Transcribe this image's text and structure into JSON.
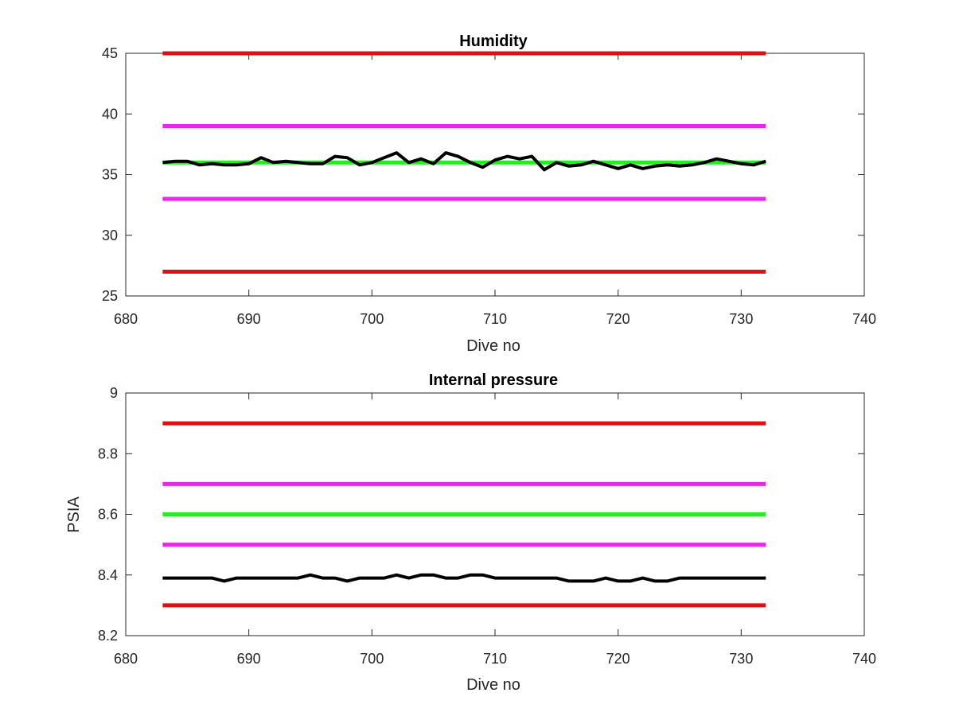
{
  "chart_data": [
    {
      "type": "line",
      "title": "Humidity",
      "xlabel": "Dive no",
      "ylabel": "",
      "xlim": [
        680,
        740
      ],
      "ylim": [
        25,
        45
      ],
      "xticks": [
        "680",
        "690",
        "700",
        "710",
        "720",
        "730",
        "740"
      ],
      "yticks": [
        "25",
        "30",
        "35",
        "40",
        "45"
      ],
      "grid": false,
      "legend": false,
      "thresholds": [
        {
          "y": 45,
          "x": [
            683,
            732
          ],
          "color": "#e01010"
        },
        {
          "y": 39,
          "x": [
            683,
            732
          ],
          "color": "#ee22ee"
        },
        {
          "y": 36,
          "x": [
            683,
            732
          ],
          "color": "#22ee22"
        },
        {
          "y": 33,
          "x": [
            683,
            732
          ],
          "color": "#ee22ee"
        },
        {
          "y": 27,
          "x": [
            683,
            732
          ],
          "color": "#e01010"
        }
      ],
      "series": [
        {
          "color": "#000000",
          "x": [
            683,
            684,
            685,
            686,
            687,
            688,
            689,
            690,
            691,
            692,
            693,
            694,
            695,
            696,
            697,
            698,
            699,
            700,
            701,
            702,
            703,
            704,
            705,
            706,
            707,
            708,
            709,
            710,
            711,
            712,
            713,
            714,
            715,
            716,
            717,
            718,
            719,
            720,
            721,
            722,
            723,
            724,
            725,
            726,
            727,
            728,
            729,
            730,
            731,
            732
          ],
          "values": [
            36.0,
            36.1,
            36.1,
            35.8,
            35.9,
            35.8,
            35.8,
            35.9,
            36.4,
            36.0,
            36.1,
            36.0,
            35.9,
            35.9,
            36.5,
            36.4,
            35.8,
            36.0,
            36.4,
            36.8,
            36.0,
            36.3,
            35.9,
            36.8,
            36.5,
            36.0,
            35.6,
            36.2,
            36.5,
            36.3,
            36.5,
            35.4,
            36.0,
            35.7,
            35.8,
            36.1,
            35.8,
            35.5,
            35.8,
            35.5,
            35.7,
            35.8,
            35.7,
            35.8,
            36.0,
            36.3,
            36.1,
            35.9,
            35.8,
            36.1
          ]
        }
      ]
    },
    {
      "type": "line",
      "title": "Internal pressure",
      "xlabel": "Dive no",
      "ylabel": "PSIA",
      "xlim": [
        680,
        740
      ],
      "ylim": [
        8.2,
        9.0
      ],
      "xticks": [
        "680",
        "690",
        "700",
        "710",
        "720",
        "730",
        "740"
      ],
      "yticks": [
        "8.2",
        "8.4",
        "8.6",
        "8.8",
        "9"
      ],
      "grid": false,
      "legend": false,
      "thresholds": [
        {
          "y": 8.9,
          "x": [
            683,
            732
          ],
          "color": "#e01010"
        },
        {
          "y": 8.7,
          "x": [
            683,
            732
          ],
          "color": "#ee22ee"
        },
        {
          "y": 8.6,
          "x": [
            683,
            732
          ],
          "color": "#22ee22"
        },
        {
          "y": 8.5,
          "x": [
            683,
            732
          ],
          "color": "#ee22ee"
        },
        {
          "y": 8.3,
          "x": [
            683,
            732
          ],
          "color": "#e01010"
        }
      ],
      "series": [
        {
          "color": "#000000",
          "x": [
            683,
            684,
            685,
            686,
            687,
            688,
            689,
            690,
            691,
            692,
            693,
            694,
            695,
            696,
            697,
            698,
            699,
            700,
            701,
            702,
            703,
            704,
            705,
            706,
            707,
            708,
            709,
            710,
            711,
            712,
            713,
            714,
            715,
            716,
            717,
            718,
            719,
            720,
            721,
            722,
            723,
            724,
            725,
            726,
            727,
            728,
            729,
            730,
            731,
            732
          ],
          "values": [
            8.39,
            8.39,
            8.39,
            8.39,
            8.39,
            8.38,
            8.39,
            8.39,
            8.39,
            8.39,
            8.39,
            8.39,
            8.4,
            8.39,
            8.39,
            8.38,
            8.39,
            8.39,
            8.39,
            8.4,
            8.39,
            8.4,
            8.4,
            8.39,
            8.39,
            8.4,
            8.4,
            8.39,
            8.39,
            8.39,
            8.39,
            8.39,
            8.39,
            8.38,
            8.38,
            8.38,
            8.39,
            8.38,
            8.38,
            8.39,
            8.38,
            8.38,
            8.39,
            8.39,
            8.39,
            8.39,
            8.39,
            8.39,
            8.39,
            8.39
          ]
        }
      ]
    }
  ]
}
